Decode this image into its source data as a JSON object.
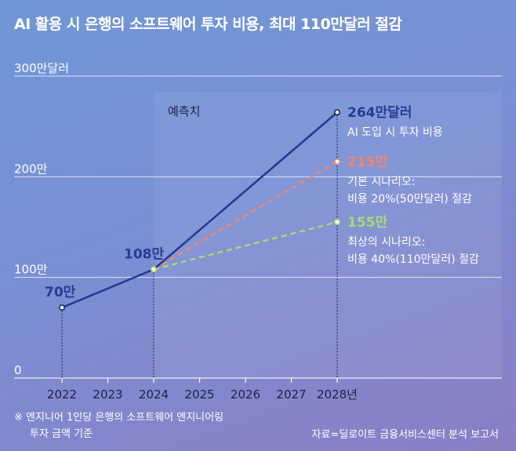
{
  "title": "AI 활용 시 은행의 소프트웨어 투자 비용, 최대 110만달러 절감",
  "chart_data": {
    "type": "line",
    "y_ticks": [
      {
        "value": 0,
        "label": "0"
      },
      {
        "value": 100,
        "label": "100만"
      },
      {
        "value": 200,
        "label": "200만"
      },
      {
        "value": 300,
        "label": "300만달러"
      }
    ],
    "ylim": [
      0,
      300
    ],
    "x_ticks": [
      "2022",
      "2023",
      "2024",
      "2025",
      "2026",
      "2027",
      "2028년"
    ],
    "forecast_label": "예측치",
    "series": [
      {
        "name": "AI 도입 시 투자 비용",
        "color": "#233c95",
        "style": "solid",
        "points": [
          {
            "x": 2022,
            "y": 70
          },
          {
            "x": 2024,
            "y": 108
          },
          {
            "x": 2028,
            "y": 264
          }
        ],
        "end_label": "264만달러",
        "end_desc": [
          "AI 도입 시 투자 비용"
        ]
      },
      {
        "name": "기본 시나리오",
        "color": "#f2876a",
        "style": "dashed",
        "points": [
          {
            "x": 2024,
            "y": 108
          },
          {
            "x": 2028,
            "y": 215
          }
        ],
        "end_label": "215만",
        "end_desc": [
          "기본 시나리오:",
          "비용 20%(50만달러) 절감"
        ]
      },
      {
        "name": "최상의 시나리오",
        "color": "#a8dc72",
        "style": "dashed",
        "points": [
          {
            "x": 2024,
            "y": 108
          },
          {
            "x": 2028,
            "y": 155
          }
        ],
        "end_label": "155만",
        "end_desc": [
          "최상의 시나리오:",
          "비용 40%(110만달러) 절감"
        ]
      }
    ],
    "point_labels": [
      {
        "x": 2022,
        "y": 70,
        "label": "70만"
      },
      {
        "x": 2024,
        "y": 108,
        "label": "108만"
      }
    ]
  },
  "footnote": [
    "※ 엔지니어 1인당 은행의 소프트웨어 엔지니어링",
    "투자 금액 기준"
  ],
  "source": "자료=딜로이트 금융서비스센터 분석 보고서"
}
